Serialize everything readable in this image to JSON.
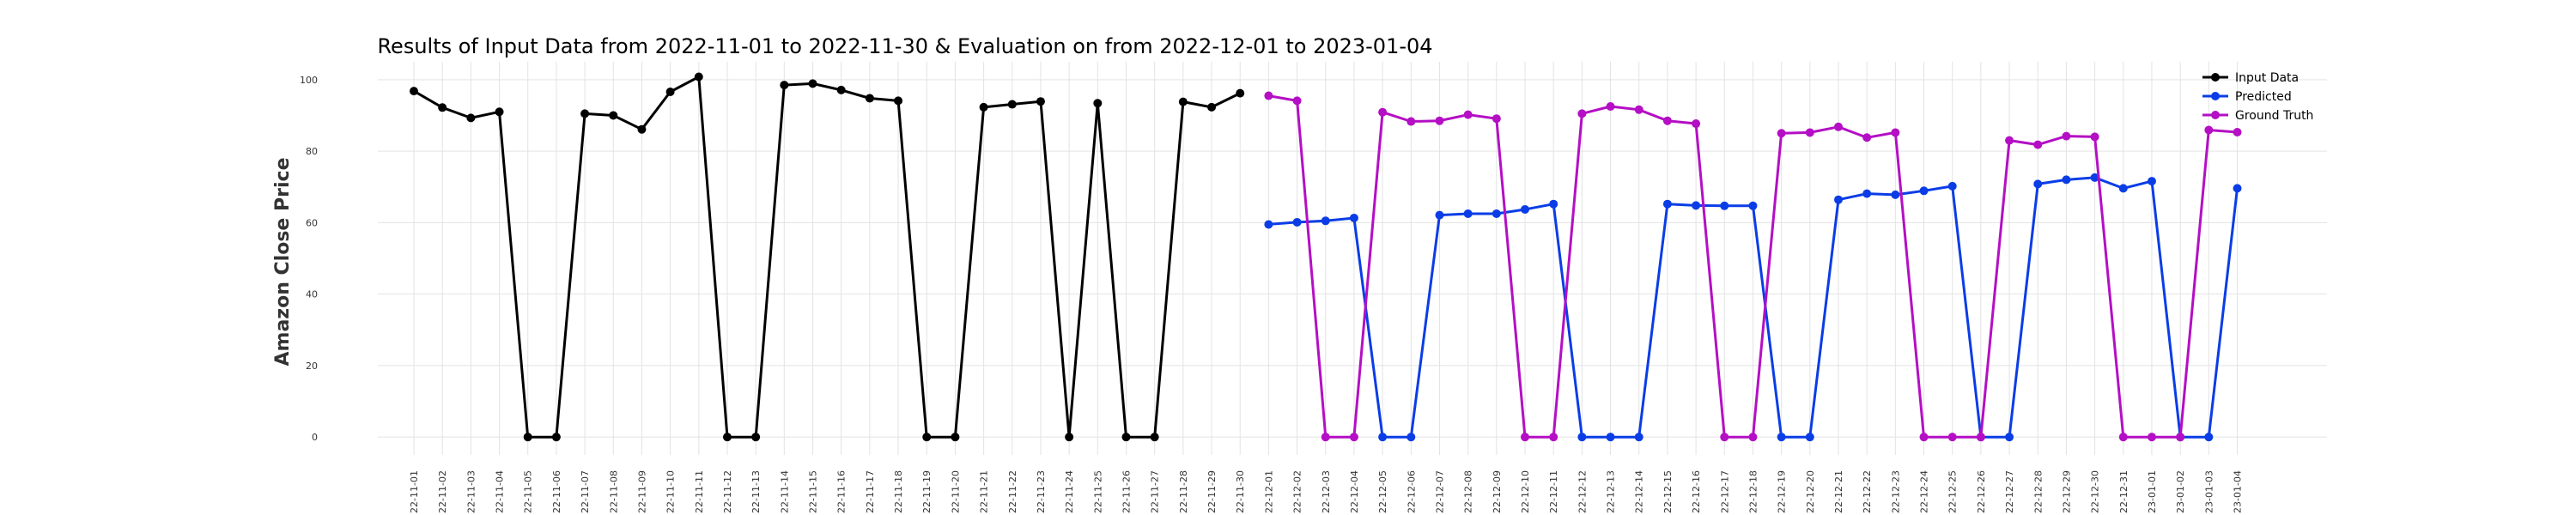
{
  "chart_data": {
    "type": "line",
    "title": "Results of Input Data from 2022-11-01 to 2022-11-30 & Evaluation on from 2022-12-01 to 2023-01-04",
    "xlabel": "",
    "ylabel": "Amazon Close Price",
    "ylim": [
      -5,
      105
    ],
    "yticks": [
      0,
      20,
      40,
      60,
      80,
      100
    ],
    "grid": true,
    "legend_position": "top-right",
    "x": [
      "2022-11-01",
      "2022-11-02",
      "2022-11-03",
      "2022-11-04",
      "2022-11-05",
      "2022-11-06",
      "2022-11-07",
      "2022-11-08",
      "2022-11-09",
      "2022-11-10",
      "2022-11-11",
      "2022-11-12",
      "2022-11-13",
      "2022-11-14",
      "2022-11-15",
      "2022-11-16",
      "2022-11-17",
      "2022-11-18",
      "2022-11-19",
      "2022-11-20",
      "2022-11-21",
      "2022-11-22",
      "2022-11-23",
      "2022-11-24",
      "2022-11-25",
      "2022-11-26",
      "2022-11-27",
      "2022-11-28",
      "2022-11-29",
      "2022-11-30",
      "2022-12-01",
      "2022-12-02",
      "2022-12-03",
      "2022-12-04",
      "2022-12-05",
      "2022-12-06",
      "2022-12-07",
      "2022-12-08",
      "2022-12-09",
      "2022-12-10",
      "2022-12-11",
      "2022-12-12",
      "2022-12-13",
      "2022-12-14",
      "2022-12-15",
      "2022-12-16",
      "2022-12-17",
      "2022-12-18",
      "2022-12-19",
      "2022-12-20",
      "2022-12-21",
      "2022-12-22",
      "2022-12-23",
      "2022-12-24",
      "2022-12-25",
      "2022-12-26",
      "2022-12-27",
      "2022-12-28",
      "2022-12-29",
      "2022-12-30",
      "2022-12-31",
      "2023-01-01",
      "2023-01-02",
      "2023-01-03",
      "2023-01-04"
    ],
    "tick_labels": [
      "22-11-01",
      "22-11-02",
      "22-11-03",
      "22-11-04",
      "22-11-05",
      "22-11-06",
      "22-11-07",
      "22-11-08",
      "22-11-09",
      "22-11-10",
      "22-11-11",
      "22-11-12",
      "22-11-13",
      "22-11-14",
      "22-11-15",
      "22-11-16",
      "22-11-17",
      "22-11-18",
      "22-11-19",
      "22-11-20",
      "22-11-21",
      "22-11-22",
      "22-11-23",
      "22-11-24",
      "22-11-25",
      "22-11-26",
      "22-11-27",
      "22-11-28",
      "22-11-29",
      "22-11-30",
      "22-12-01",
      "22-12-02",
      "22-12-03",
      "22-12-04",
      "22-12-05",
      "22-12-06",
      "22-12-07",
      "22-12-08",
      "22-12-09",
      "22-12-10",
      "22-12-11",
      "22-12-12",
      "22-12-13",
      "22-12-14",
      "22-12-15",
      "22-12-16",
      "22-12-17",
      "22-12-18",
      "22-12-19",
      "22-12-20",
      "22-12-21",
      "22-12-22",
      "22-12-23",
      "22-12-24",
      "22-12-25",
      "22-12-26",
      "22-12-27",
      "22-12-28",
      "22-12-29",
      "22-12-30",
      "22-12-31",
      "23-01-01",
      "23-01-02",
      "23-01-03",
      "23-01-04"
    ],
    "series": [
      {
        "name": "Input Data",
        "color": "#000000",
        "x": [
          "2022-11-01",
          "2022-11-02",
          "2022-11-03",
          "2022-11-04",
          "2022-11-05",
          "2022-11-06",
          "2022-11-07",
          "2022-11-08",
          "2022-11-09",
          "2022-11-10",
          "2022-11-11",
          "2022-11-12",
          "2022-11-13",
          "2022-11-14",
          "2022-11-15",
          "2022-11-16",
          "2022-11-17",
          "2022-11-18",
          "2022-11-19",
          "2022-11-20",
          "2022-11-21",
          "2022-11-22",
          "2022-11-23",
          "2022-11-24",
          "2022-11-25",
          "2022-11-26",
          "2022-11-27",
          "2022-11-28",
          "2022-11-29",
          "2022-11-30"
        ],
        "values": [
          96.8,
          92.2,
          89.3,
          91.0,
          0,
          0,
          90.5,
          90.0,
          86.1,
          96.6,
          100.8,
          0,
          0,
          98.5,
          98.9,
          97.1,
          94.8,
          94.1,
          0,
          0,
          92.3,
          93.1,
          93.9,
          0,
          93.4,
          0,
          0,
          93.8,
          92.3,
          96.2
        ]
      },
      {
        "name": "Predicted",
        "color": "#0a3de6",
        "x": [
          "2022-12-01",
          "2022-12-02",
          "2022-12-03",
          "2022-12-04",
          "2022-12-05",
          "2022-12-06",
          "2022-12-07",
          "2022-12-08",
          "2022-12-09",
          "2022-12-10",
          "2022-12-11",
          "2022-12-12",
          "2022-12-13",
          "2022-12-14",
          "2022-12-15",
          "2022-12-16",
          "2022-12-17",
          "2022-12-18",
          "2022-12-19",
          "2022-12-20",
          "2022-12-21",
          "2022-12-22",
          "2022-12-23",
          "2022-12-24",
          "2022-12-25",
          "2022-12-26",
          "2022-12-27",
          "2022-12-28",
          "2022-12-29",
          "2022-12-30",
          "2022-12-31",
          "2023-01-01",
          "2023-01-02",
          "2023-01-03",
          "2023-01-04"
        ],
        "values": [
          59.5,
          60.1,
          60.5,
          61.3,
          0,
          0,
          62.1,
          62.5,
          62.5,
          63.7,
          65.2,
          0,
          0,
          0,
          65.2,
          64.8,
          64.7,
          64.7,
          0,
          0,
          66.4,
          68.1,
          67.8,
          68.9,
          70.2,
          0,
          0,
          70.8,
          72.0,
          72.6,
          69.6,
          71.6,
          0,
          0,
          69.6
        ]
      },
      {
        "name": "Ground Truth",
        "color": "#b40fc4",
        "x": [
          "2022-12-01",
          "2022-12-02",
          "2022-12-03",
          "2022-12-04",
          "2022-12-05",
          "2022-12-06",
          "2022-12-07",
          "2022-12-08",
          "2022-12-09",
          "2022-12-10",
          "2022-12-11",
          "2022-12-12",
          "2022-12-13",
          "2022-12-14",
          "2022-12-15",
          "2022-12-16",
          "2022-12-17",
          "2022-12-18",
          "2022-12-19",
          "2022-12-20",
          "2022-12-21",
          "2022-12-22",
          "2022-12-23",
          "2022-12-24",
          "2022-12-25",
          "2022-12-26",
          "2022-12-27",
          "2022-12-28",
          "2022-12-29",
          "2022-12-30",
          "2022-12-31",
          "2023-01-01",
          "2023-01-02",
          "2023-01-03",
          "2023-01-04"
        ],
        "values": [
          95.5,
          94.1,
          0,
          0,
          90.9,
          88.3,
          88.5,
          90.2,
          89.1,
          0,
          0,
          90.5,
          92.5,
          91.6,
          88.5,
          87.7,
          0,
          0,
          85.0,
          85.2,
          86.8,
          83.8,
          85.2,
          0,
          0,
          0,
          83.0,
          81.8,
          84.2,
          84.0,
          0,
          0,
          0,
          85.9,
          85.3
        ]
      }
    ]
  }
}
